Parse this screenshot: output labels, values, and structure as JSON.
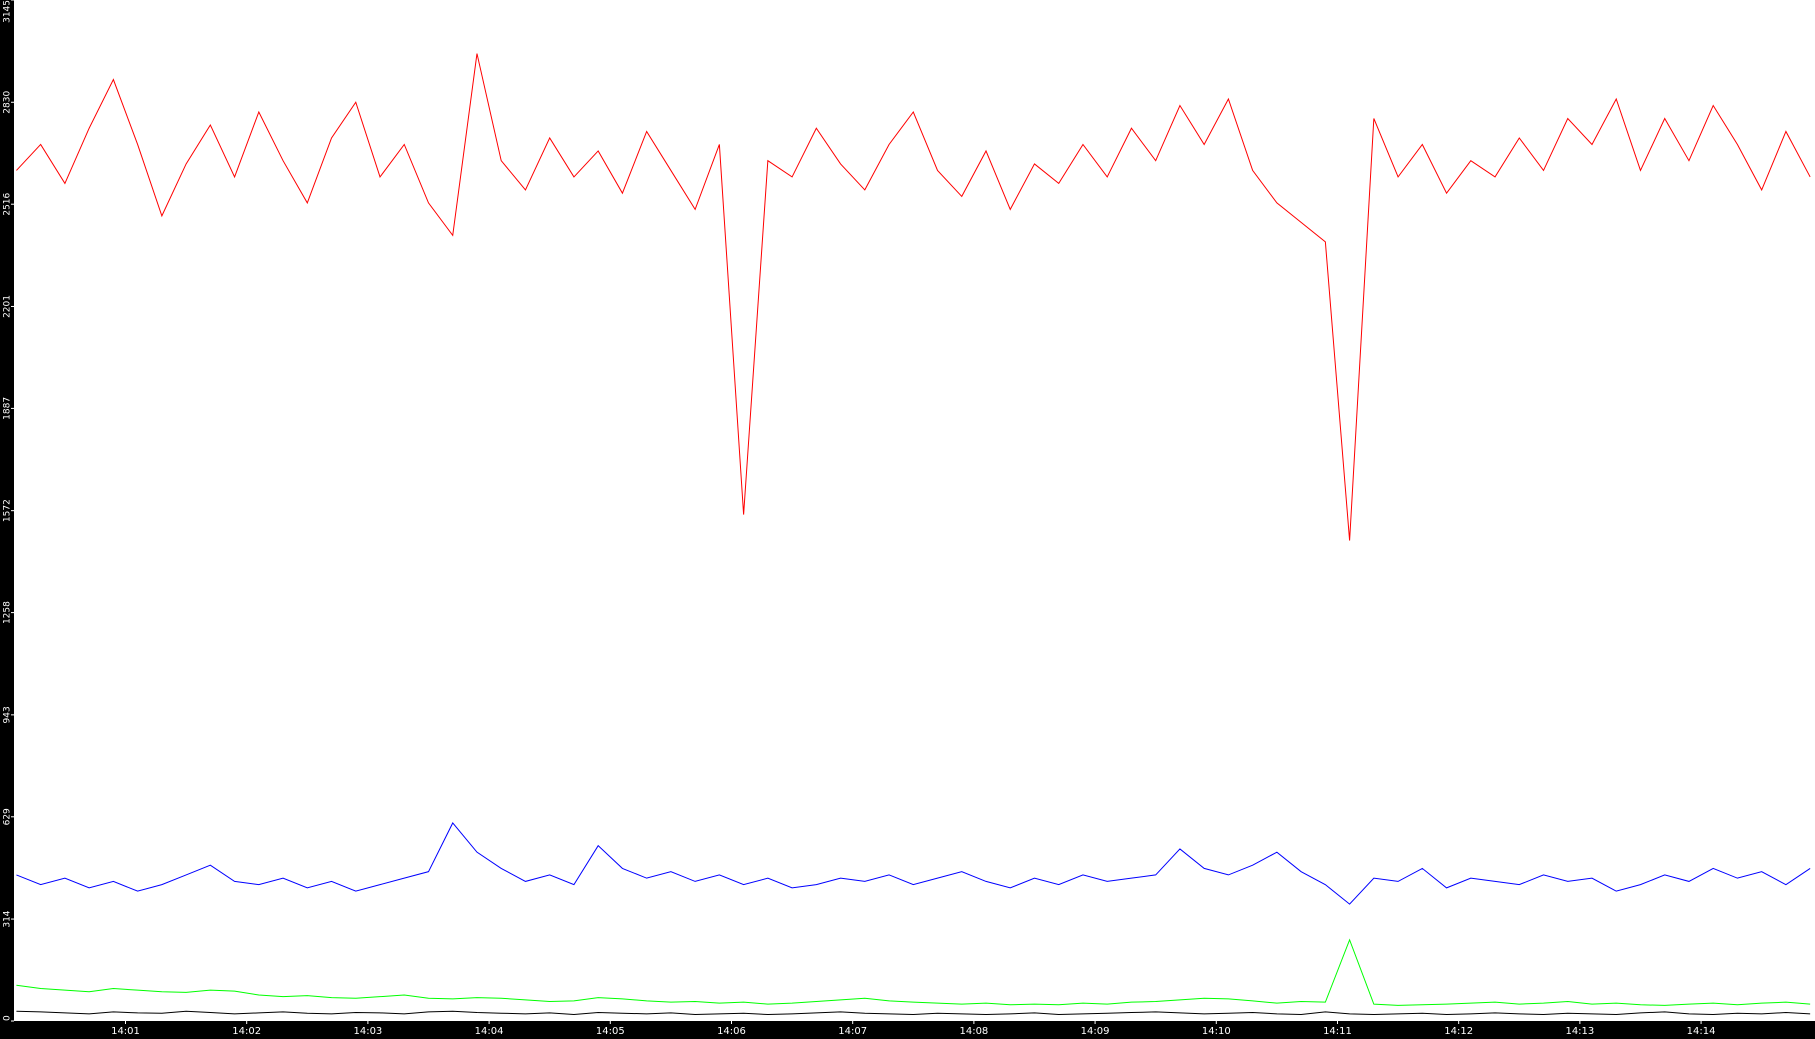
{
  "chart_data": {
    "type": "line",
    "x": [
      0.1,
      0.3,
      0.5,
      0.7,
      0.9,
      1.1,
      1.3,
      1.5,
      1.7,
      1.9,
      2.1,
      2.3,
      2.5,
      2.7,
      2.9,
      3.1,
      3.3,
      3.5,
      3.7,
      3.9,
      4.1,
      4.3,
      4.5,
      4.7,
      4.9,
      5.1,
      5.3,
      5.5,
      5.7,
      5.9,
      6.1,
      6.3,
      6.5,
      6.7,
      6.9,
      7.1,
      7.3,
      7.5,
      7.7,
      7.9,
      8.1,
      8.3,
      8.5,
      8.7,
      8.9,
      9.1,
      9.3,
      9.5,
      9.7,
      9.9,
      10.1,
      10.3,
      10.5,
      10.7,
      10.9,
      11.1,
      11.3,
      11.5,
      11.7,
      11.9,
      12.1,
      12.3,
      12.5,
      12.7,
      12.9,
      13.1,
      13.3,
      13.5,
      13.7,
      13.9,
      14.1,
      14.3,
      14.5,
      14.7,
      14.9
    ],
    "series": [
      {
        "color": "#ff0000",
        "values": [
          2620,
          2700,
          2580,
          2750,
          2900,
          2700,
          2480,
          2640,
          2760,
          2600,
          2800,
          2650,
          2520,
          2720,
          2830,
          2600,
          2700,
          2520,
          2420,
          2980,
          2650,
          2560,
          2720,
          2600,
          2680,
          2550,
          2740,
          2620,
          2500,
          2700,
          1560,
          2650,
          2600,
          2750,
          2640,
          2560,
          2700,
          2800,
          2620,
          2540,
          2680,
          2500,
          2640,
          2580,
          2700,
          2600,
          2750,
          2650,
          2820,
          2700,
          2840,
          2620,
          2520,
          2460,
          2400,
          1480,
          2780,
          2600,
          2700,
          2550,
          2650,
          2600,
          2720,
          2620,
          2780,
          2700,
          2840,
          2620,
          2780,
          2650,
          2820,
          2700,
          2560,
          2740,
          2600
        ]
      },
      {
        "color": "#0000ff",
        "values": [
          450,
          420,
          440,
          410,
          430,
          400,
          420,
          450,
          480,
          430,
          420,
          440,
          410,
          430,
          400,
          420,
          440,
          460,
          610,
          520,
          470,
          430,
          450,
          420,
          540,
          470,
          440,
          460,
          430,
          450,
          420,
          440,
          410,
          420,
          440,
          430,
          450,
          420,
          440,
          460,
          430,
          410,
          440,
          420,
          450,
          430,
          440,
          450,
          530,
          470,
          450,
          480,
          520,
          460,
          420,
          360,
          440,
          430,
          470,
          410,
          440,
          430,
          420,
          450,
          430,
          440,
          400,
          420,
          450,
          430,
          470,
          440,
          460,
          420,
          470
        ]
      },
      {
        "color": "#00ff00",
        "values": [
          110,
          100,
          95,
          90,
          100,
          95,
          90,
          88,
          95,
          92,
          80,
          75,
          78,
          72,
          70,
          75,
          80,
          70,
          68,
          72,
          70,
          65,
          60,
          62,
          72,
          68,
          62,
          58,
          60,
          55,
          58,
          52,
          55,
          60,
          65,
          70,
          62,
          58,
          55,
          52,
          55,
          50,
          52,
          50,
          55,
          52,
          58,
          60,
          65,
          70,
          68,
          62,
          55,
          60,
          58,
          250,
          52,
          48,
          50,
          52,
          55,
          58,
          52,
          55,
          60,
          52,
          55,
          50,
          48,
          52,
          55,
          50,
          55,
          58,
          52
        ]
      },
      {
        "color": "#000000",
        "values": [
          30,
          28,
          25,
          22,
          28,
          25,
          24,
          30,
          26,
          22,
          25,
          28,
          24,
          22,
          26,
          25,
          22,
          28,
          30,
          26,
          24,
          22,
          25,
          20,
          26,
          24,
          22,
          25,
          20,
          22,
          24,
          20,
          22,
          25,
          28,
          24,
          22,
          20,
          24,
          22,
          20,
          22,
          25,
          20,
          22,
          24,
          26,
          28,
          25,
          22,
          24,
          26,
          22,
          20,
          28,
          22,
          20,
          22,
          24,
          20,
          22,
          25,
          22,
          20,
          24,
          22,
          20,
          25,
          28,
          22,
          20,
          24,
          22,
          26,
          22
        ]
      }
    ],
    "xlim": [
      0.08,
      14.94
    ],
    "ylim": [
      0,
      3145
    ],
    "xticks": [
      {
        "value": 1,
        "label": "14:01"
      },
      {
        "value": 2,
        "label": "14:02"
      },
      {
        "value": 3,
        "label": "14:03"
      },
      {
        "value": 4,
        "label": "14:04"
      },
      {
        "value": 5,
        "label": "14:05"
      },
      {
        "value": 6,
        "label": "14:06"
      },
      {
        "value": 7,
        "label": "14:07"
      },
      {
        "value": 8,
        "label": "14:08"
      },
      {
        "value": 9,
        "label": "14:09"
      },
      {
        "value": 10,
        "label": "14:10"
      },
      {
        "value": 11,
        "label": "14:11"
      },
      {
        "value": 12,
        "label": "14:12"
      },
      {
        "value": 13,
        "label": "14:13"
      },
      {
        "value": 14,
        "label": "14:14"
      }
    ],
    "yticks": [
      0,
      314,
      629,
      943,
      1258,
      1572,
      1887,
      2201,
      2516,
      2830,
      3145
    ],
    "grid": false
  }
}
